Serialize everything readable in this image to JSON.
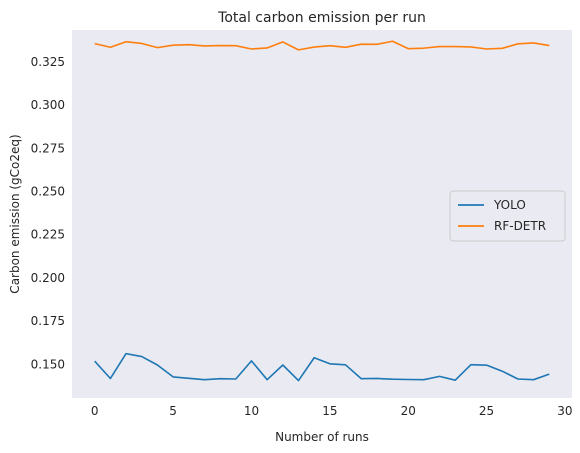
{
  "chart_data": {
    "type": "line",
    "title": "Total carbon emission per run",
    "xlabel": "Number of runs",
    "ylabel": "Carbon emission (gCo2eq)",
    "xlim": [
      -1.45,
      30.45
    ],
    "ylim": [
      0.1305,
      0.3435
    ],
    "xticks": [
      0,
      5,
      10,
      15,
      20,
      25,
      30
    ],
    "yticks": [
      0.15,
      0.175,
      0.2,
      0.225,
      0.25,
      0.275,
      0.3,
      0.325
    ],
    "ytick_labels": [
      "0.150",
      "0.175",
      "0.200",
      "0.225",
      "0.250",
      "0.275",
      "0.300",
      "0.325"
    ],
    "grid": false,
    "legend_position": "center-right",
    "x": [
      0,
      1,
      2,
      3,
      4,
      5,
      6,
      7,
      8,
      9,
      10,
      11,
      12,
      13,
      14,
      15,
      16,
      17,
      18,
      19,
      20,
      21,
      22,
      23,
      24,
      25,
      26,
      27,
      28,
      29
    ],
    "series": [
      {
        "name": "YOLO",
        "color": "#1f77b4",
        "values": [
          0.1518,
          0.1418,
          0.1562,
          0.1545,
          0.1496,
          0.1427,
          0.1419,
          0.1411,
          0.1417,
          0.1415,
          0.152,
          0.1411,
          0.1496,
          0.1406,
          0.1538,
          0.1503,
          0.1497,
          0.1417,
          0.1418,
          0.1414,
          0.1412,
          0.1411,
          0.143,
          0.1408,
          0.1498,
          0.1495,
          0.146,
          0.1415,
          0.1411,
          0.1443
        ]
      },
      {
        "name": "RF-DETR",
        "color": "#ff7f0e",
        "values": [
          0.3356,
          0.3335,
          0.3367,
          0.3357,
          0.3333,
          0.3347,
          0.335,
          0.3343,
          0.3345,
          0.3344,
          0.3325,
          0.3331,
          0.3366,
          0.332,
          0.3336,
          0.3344,
          0.3335,
          0.3353,
          0.3352,
          0.337,
          0.3327,
          0.333,
          0.3339,
          0.3339,
          0.3337,
          0.3325,
          0.3329,
          0.3355,
          0.336,
          0.3345
        ]
      }
    ],
    "plot_background": "#eaeaf2"
  }
}
